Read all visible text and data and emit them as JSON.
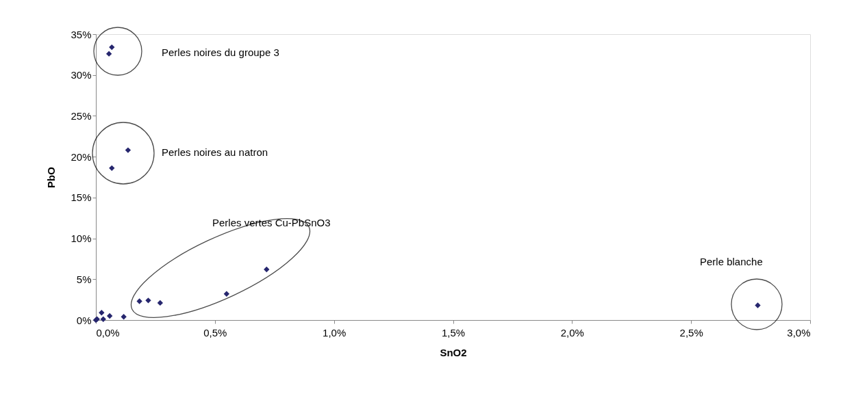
{
  "chart_data": {
    "type": "scatter",
    "xlabel": "SnO2",
    "ylabel": "PbO",
    "x": [
      0,
      0.005,
      0.024,
      0.031,
      0.058,
      0.117,
      0.183,
      0.22,
      0.27,
      0.549,
      0.717,
      0.067,
      0.055,
      0.135,
      0.067,
      2.78
    ],
    "series": [
      {
        "color": "#26266e",
        "values": [
          0,
          0.1,
          0.9,
          0.1,
          0.5,
          0.4,
          2.3,
          2.4,
          2.1,
          3.2,
          6.2,
          33.4,
          32.6,
          20.8,
          18.6,
          1.8
        ]
      }
    ],
    "xlim": [
      0,
      3
    ],
    "ylim": [
      0,
      35
    ],
    "xticks": [
      {
        "value": 0,
        "label": "0,0%"
      },
      {
        "value": 0.5,
        "label": "0,5%"
      },
      {
        "value": 1,
        "label": "1,0%"
      },
      {
        "value": 1.5,
        "label": "1,5%"
      },
      {
        "value": 2,
        "label": "2,0%"
      },
      {
        "value": 2.5,
        "label": "2,5%"
      },
      {
        "value": 3,
        "label": "3,0%"
      }
    ],
    "yticks": [
      {
        "value": 0,
        "label": "0%"
      },
      {
        "value": 5,
        "label": "5%"
      },
      {
        "value": 10,
        "label": "10%"
      },
      {
        "value": 15,
        "label": "15%"
      },
      {
        "value": 20,
        "label": "20%"
      },
      {
        "value": 25,
        "label": "25%"
      },
      {
        "value": 30,
        "label": "30%"
      },
      {
        "value": 35,
        "label": "35%"
      }
    ],
    "marker": "diamond",
    "grid": false,
    "annotations": [
      "Perles noires du groupe 3",
      "Perles noires au natron",
      "Perles vertes Cu-PbSnO3",
      "Perle blanche"
    ]
  }
}
